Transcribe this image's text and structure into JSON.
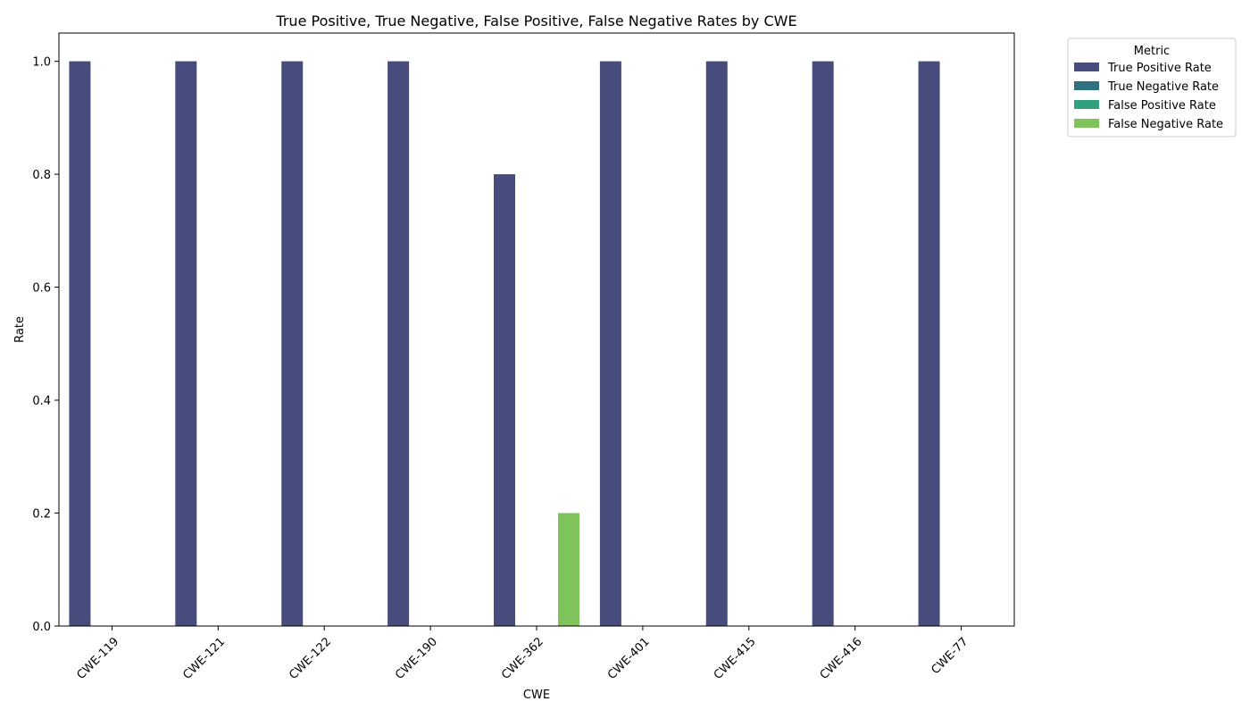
{
  "chart_data": {
    "type": "bar",
    "title": "True Positive, True Negative, False Positive, False Negative Rates by CWE",
    "xlabel": "CWE",
    "ylabel": "Rate",
    "ylim": [
      0,
      1.05
    ],
    "yticks": [
      "0.0",
      "0.2",
      "0.4",
      "0.6",
      "0.8",
      "1.0"
    ],
    "categories": [
      "CWE-119",
      "CWE-121",
      "CWE-122",
      "CWE-190",
      "CWE-362",
      "CWE-401",
      "CWE-415",
      "CWE-416",
      "CWE-77"
    ],
    "series": [
      {
        "name": "True Positive Rate",
        "color": "#484c7d",
        "values": [
          1.0,
          1.0,
          1.0,
          1.0,
          0.8,
          1.0,
          1.0,
          1.0,
          1.0
        ]
      },
      {
        "name": "True Negative Rate",
        "color": "#2e7280",
        "values": [
          0,
          0,
          0,
          0,
          0,
          0,
          0,
          0,
          0
        ]
      },
      {
        "name": "False Positive Rate",
        "color": "#30a07f",
        "values": [
          0,
          0,
          0,
          0,
          0,
          0,
          0,
          0,
          0
        ]
      },
      {
        "name": "False Negative Rate",
        "color": "#7ec45a",
        "values": [
          0,
          0,
          0,
          0,
          0.2,
          0,
          0,
          0,
          0
        ]
      }
    ],
    "legend": {
      "title": "Metric",
      "placement": "outside top-right"
    },
    "grid": false,
    "xtick_rotation": 45
  }
}
